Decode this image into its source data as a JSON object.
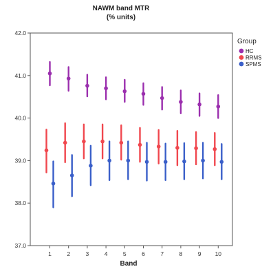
{
  "chart_data": {
    "type": "errorbar",
    "title": "NAWM band MTR",
    "subtitle": "(% units)",
    "xlabel": "Band",
    "ylabel": "",
    "x": [
      1,
      2,
      3,
      4,
      5,
      6,
      7,
      8,
      9,
      10
    ],
    "ylim": [
      37.0,
      42.0
    ],
    "yticks": [
      "37.0",
      "38.0",
      "39.0",
      "40.0",
      "41.0",
      "42.0"
    ],
    "legend": {
      "title": "Group",
      "placement": "right"
    },
    "series": [
      {
        "name": "HC",
        "color": "#9b2fae",
        "mean": [
          41.05,
          40.93,
          40.76,
          40.7,
          40.63,
          40.57,
          40.47,
          40.38,
          40.32,
          40.27
        ],
        "lower": [
          40.77,
          40.64,
          40.51,
          40.44,
          40.38,
          40.31,
          40.2,
          40.11,
          40.05,
          40.0
        ],
        "upper": [
          41.32,
          41.2,
          41.02,
          40.96,
          40.9,
          40.82,
          40.73,
          40.65,
          40.58,
          40.54
        ]
      },
      {
        "name": "RRMS",
        "color": "#f0474e",
        "mean": [
          39.24,
          39.42,
          39.45,
          39.45,
          39.42,
          39.37,
          39.33,
          39.3,
          39.29,
          39.27
        ],
        "lower": [
          38.72,
          38.96,
          39.05,
          39.05,
          39.02,
          38.97,
          38.93,
          38.89,
          38.91,
          38.89
        ],
        "upper": [
          39.73,
          39.88,
          39.85,
          39.85,
          39.83,
          39.77,
          39.72,
          39.7,
          39.67,
          39.65
        ]
      },
      {
        "name": "SPMS",
        "color": "#3a5fc9",
        "mean": [
          38.46,
          38.65,
          38.88,
          39.0,
          39.0,
          38.97,
          38.97,
          38.98,
          39.0,
          38.97
        ],
        "lower": [
          37.9,
          38.16,
          38.42,
          38.54,
          38.56,
          38.53,
          38.54,
          38.56,
          38.58,
          38.56
        ],
        "upper": [
          38.98,
          39.13,
          39.35,
          39.45,
          39.45,
          39.42,
          39.4,
          39.41,
          39.42,
          39.39
        ]
      }
    ]
  }
}
